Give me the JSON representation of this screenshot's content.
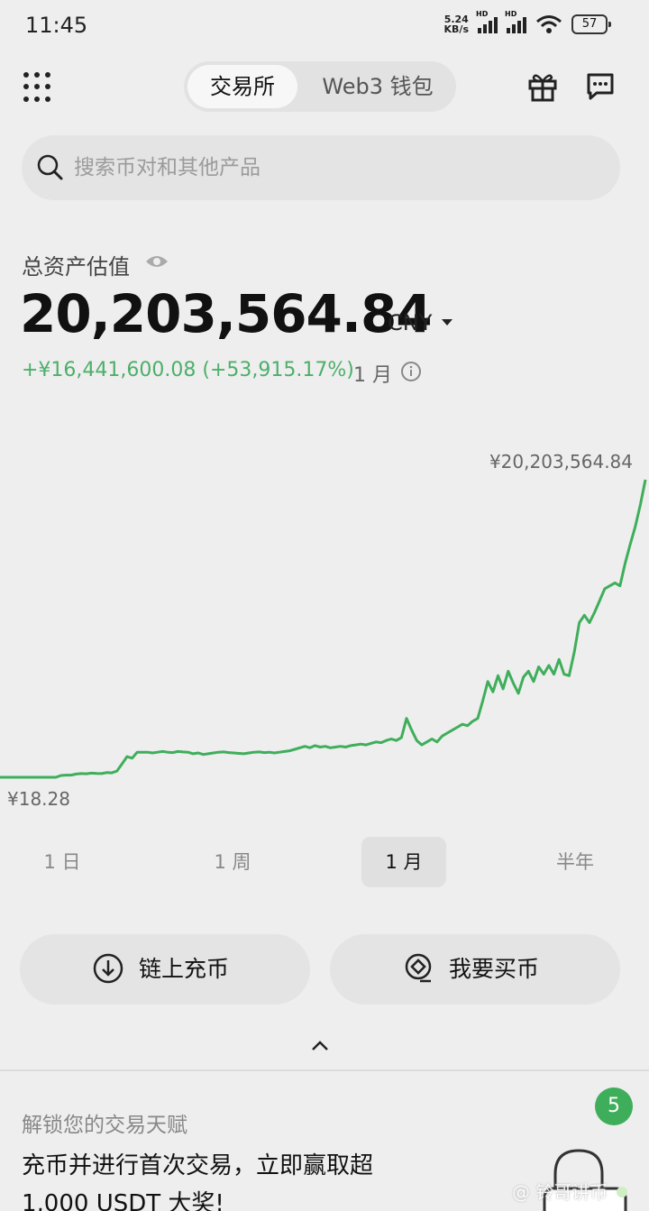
{
  "status_bar": {
    "time": "11:45",
    "net_speed_value": "5.24",
    "net_speed_unit": "KB/s",
    "sim1_tag": "HD",
    "sim2_tag": "HD",
    "battery": "57"
  },
  "nav": {
    "tab_exchange": "交易所",
    "tab_wallet": "Web3 钱包",
    "active_tab": "交易所",
    "left_icon": "grid-menu-icon",
    "right_icons": [
      "gift-icon",
      "chat-icon"
    ]
  },
  "search": {
    "placeholder": "搜索币对和其他产品"
  },
  "assets": {
    "label": "总资产估值",
    "value": "20,203,564.84",
    "currency": "CNY",
    "pnl": "+¥16,441,600.08 (+53,915.17%)",
    "pnl_period": "1 月",
    "pnl_color": "#4caf6a"
  },
  "chart_data": {
    "type": "line",
    "max_label": "¥20,203,564.84",
    "min_label": "¥18.28",
    "color": "#3fae5b",
    "ylim": [
      18.28,
      20203564.84
    ],
    "series": [
      {
        "values": [
          18.28,
          18.28,
          18.28,
          18.28,
          18.28,
          18.28,
          18.28,
          18.28,
          18.28,
          18.28,
          18.28,
          18.28,
          120000,
          150000,
          150000,
          220000,
          250000,
          240000,
          280000,
          260000,
          250000,
          320000,
          300000,
          420000,
          900000,
          1400000,
          1300000,
          1700000,
          1700000,
          1700000,
          1650000,
          1700000,
          1750000,
          1700000,
          1680000,
          1750000,
          1720000,
          1700000,
          1600000,
          1650000,
          1550000,
          1600000,
          1650000,
          1700000,
          1720000,
          1680000,
          1650000,
          1620000,
          1600000,
          1650000,
          1700000,
          1720000,
          1680000,
          1700000,
          1650000,
          1700000,
          1750000,
          1800000,
          1900000,
          2000000,
          2100000,
          2000000,
          2150000,
          2050000,
          2100000,
          2000000,
          2050000,
          2100000,
          2050000,
          2150000,
          2200000,
          2250000,
          2200000,
          2300000,
          2400000,
          2350000,
          2500000,
          2600000,
          2500000,
          2700000,
          4000000,
          3200000,
          2500000,
          2200000,
          2400000,
          2600000,
          2400000,
          2800000,
          3000000,
          3200000,
          3400000,
          3600000,
          3500000,
          3800000,
          4000000,
          5200000,
          6500000,
          5800000,
          6900000,
          6000000,
          7200000,
          6400000,
          5700000,
          6800000,
          7200000,
          6500000,
          7500000,
          7000000,
          7600000,
          7000000,
          8000000,
          7000000,
          6900000,
          8500000,
          10500000,
          11000000,
          10500000,
          11200000,
          12000000,
          12800000,
          13000000,
          13200000,
          13000000,
          14500000,
          15800000,
          17000000,
          18500000,
          20203564.84
        ]
      }
    ],
    "grid": false,
    "legend": "none"
  },
  "periods": {
    "items": [
      "1 日",
      "1 周",
      "1 月",
      "半年"
    ],
    "active": "1 月"
  },
  "actions": {
    "deposit_label": "链上充币",
    "buy_label": "我要买币"
  },
  "promo": {
    "subtitle": "解锁您的交易天赋",
    "title": "充币并进行首次交易，立即赢取超 1,000 USDT 大奖!",
    "badge": "5"
  },
  "watermark": "@ 铃哥讲币"
}
